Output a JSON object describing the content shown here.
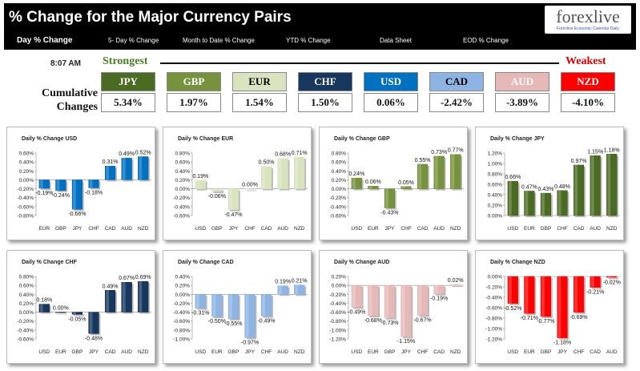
{
  "header": {
    "title": "% Change for the Major Currency Pairs",
    "logo_text": "forexlive",
    "logo_sub": "Forexlive Economic Calendar Daily"
  },
  "nav": {
    "tabs": [
      "Day % Change",
      "5- Day % Change",
      "Month to Date % Change",
      "YTD % Change",
      "Data Sheet",
      "EOD % Change"
    ]
  },
  "summary": {
    "time": "8:07 AM",
    "strongest_label": "Strongest",
    "weakest_label": "Weakest",
    "cumulative_label_line1": "Cumulative",
    "cumulative_label_line2": "Changes",
    "currencies": [
      {
        "name": "JPY",
        "value": "5.34%",
        "color": "#4b6b23",
        "text_color": "#ffffff"
      },
      {
        "name": "GBP",
        "value": "1.97%",
        "color": "#76923c",
        "text_color": "#ffffff"
      },
      {
        "name": "EUR",
        "value": "1.54%",
        "color": "#d7e4bd",
        "text_color": "#000000"
      },
      {
        "name": "CHF",
        "value": "1.50%",
        "color": "#17375e",
        "text_color": "#ffffff"
      },
      {
        "name": "USD",
        "value": "0.06%",
        "color": "#0070c0",
        "text_color": "#ffffff"
      },
      {
        "name": "CAD",
        "value": "-2.42%",
        "color": "#8db4e2",
        "text_color": "#000000"
      },
      {
        "name": "AUD",
        "value": "-3.89%",
        "color": "#e6b9b8",
        "text_color": "#ffffff"
      },
      {
        "name": "NZD",
        "value": "-4.10%",
        "color": "#ff0000",
        "text_color": "#ffffff"
      }
    ]
  },
  "chart_data": [
    {
      "type": "bar",
      "title": "Daily % Change USD",
      "categories": [
        "EUR",
        "GBP",
        "JPY",
        "CHF",
        "CAD",
        "AUD",
        "NZD"
      ],
      "values": [
        -0.19,
        -0.24,
        -0.66,
        -0.18,
        0.31,
        0.49,
        0.52
      ],
      "labels": [
        "-0.19%",
        "-0.24%",
        "-0.66%",
        "-0.18%",
        "0.31%",
        "0.49%",
        "0.52%"
      ],
      "yticks": [
        "0.60%",
        "0.40%",
        "0.20%",
        "0.00%",
        "-0.20%",
        "-0.40%",
        "-0.60%",
        "-0.80%"
      ],
      "ylim": [
        -0.8,
        0.6
      ],
      "color": "#0070c0"
    },
    {
      "type": "bar",
      "title": "Daily % Change EUR",
      "categories": [
        "USD",
        "GBP",
        "JPY",
        "CHF",
        "CAD",
        "AUD",
        "NZD"
      ],
      "values": [
        0.19,
        -0.06,
        -0.47,
        0.0,
        0.5,
        0.68,
        0.71
      ],
      "labels": [
        "0.19%",
        "-0.06%",
        "-0.47%",
        "0.00%",
        "0.50%",
        "0.68%",
        "0.71%"
      ],
      "yticks": [
        "0.80%",
        "0.60%",
        "0.40%",
        "0.20%",
        "0.00%",
        "-0.20%",
        "-0.40%",
        "-0.60%"
      ],
      "ylim": [
        -0.6,
        0.8
      ],
      "color": "#d7e4bd"
    },
    {
      "type": "bar",
      "title": "Daily % Change GBP",
      "categories": [
        "USD",
        "EUR",
        "JPY",
        "CHF",
        "CAD",
        "AUD",
        "NZD"
      ],
      "values": [
        0.24,
        0.06,
        -0.43,
        0.05,
        0.55,
        0.73,
        0.77
      ],
      "labels": [
        "0.24%",
        "0.06%",
        "-0.43%",
        "0.05%",
        "0.55%",
        "0.73%",
        "0.77%"
      ],
      "yticks": [
        "0.80%",
        "0.60%",
        "0.40%",
        "0.20%",
        "0.00%",
        "-0.20%",
        "-0.40%",
        "-0.60%"
      ],
      "ylim": [
        -0.6,
        0.8
      ],
      "color": "#76923c"
    },
    {
      "type": "bar",
      "title": "Daily % Change JPY",
      "categories": [
        "USD",
        "EUR",
        "GBP",
        "CHF",
        "CAD",
        "AUD",
        "NZD"
      ],
      "values": [
        0.66,
        0.47,
        0.43,
        0.48,
        0.97,
        1.15,
        1.18
      ],
      "labels": [
        "0.66%",
        "0.47%",
        "0.43%",
        "0.48%",
        "0.97%",
        "1.15%",
        "1.18%"
      ],
      "yticks": [
        "1.20%",
        "1.00%",
        "0.80%",
        "0.60%",
        "0.40%",
        "0.20%",
        "0.00%"
      ],
      "ylim": [
        0.0,
        1.2
      ],
      "color": "#4b6b23"
    },
    {
      "type": "bar",
      "title": "Daily % Change CHF",
      "categories": [
        "USD",
        "EUR",
        "GBP",
        "JPY",
        "CAD",
        "AUD",
        "NZD"
      ],
      "values": [
        0.18,
        0.0,
        -0.05,
        -0.48,
        0.49,
        0.67,
        0.69
      ],
      "labels": [
        "0.18%",
        "0.00%",
        "-0.05%",
        "-0.48%",
        "0.49%",
        "0.67%",
        "0.69%"
      ],
      "yticks": [
        "0.80%",
        "0.60%",
        "0.40%",
        "0.20%",
        "0.00%",
        "-0.20%",
        "-0.40%",
        "-0.60%"
      ],
      "ylim": [
        -0.6,
        0.8
      ],
      "color": "#17375e"
    },
    {
      "type": "bar",
      "title": "Daily % Change CAD",
      "categories": [
        "USD",
        "EUR",
        "GBP",
        "JPY",
        "CHF",
        "AUD",
        "NZD"
      ],
      "values": [
        -0.31,
        -0.5,
        -0.55,
        -0.97,
        -0.49,
        0.19,
        0.21
      ],
      "labels": [
        "-0.31%",
        "-0.50%",
        "-0.55%",
        "-0.97%",
        "-0.49%",
        "0.19%",
        "0.21%"
      ],
      "yticks": [
        "0.40%",
        "0.20%",
        "0.00%",
        "-0.20%",
        "-0.40%",
        "-0.60%",
        "-0.80%",
        "-1.00%"
      ],
      "ylim": [
        -1.0,
        0.4
      ],
      "color": "#8db4e2"
    },
    {
      "type": "bar",
      "title": "Daily % Change AUD",
      "categories": [
        "USD",
        "EUR",
        "GBP",
        "JPY",
        "CHF",
        "CAD",
        "NZD"
      ],
      "values": [
        -0.49,
        -0.68,
        -0.73,
        -1.15,
        -0.67,
        -0.19,
        0.02
      ],
      "labels": [
        "-0.49%",
        "-0.68%",
        "-0.73%",
        "-1.15%",
        "-0.67%",
        "-0.19%",
        "0.02%"
      ],
      "yticks": [
        "0.20%",
        "0.00%",
        "-0.20%",
        "-0.40%",
        "-0.60%",
        "-0.80%",
        "-1.00%",
        "-1.20%"
      ],
      "ylim": [
        -1.2,
        0.2
      ],
      "color": "#e6b9b8"
    },
    {
      "type": "bar",
      "title": "Daily % Change NZD",
      "categories": [
        "USD",
        "EUR",
        "GBP",
        "JPY",
        "CHF",
        "CAD",
        "AUD"
      ],
      "values": [
        -0.52,
        -0.71,
        -0.77,
        -1.18,
        -0.69,
        -0.21,
        -0.02
      ],
      "labels": [
        "-0.52%",
        "-0.71%",
        "-0.77%",
        "-1.18%",
        "-0.69%",
        "-0.21%",
        "-0.02%"
      ],
      "yticks": [
        "0.00%",
        "-0.20%",
        "-0.40%",
        "-0.60%",
        "-0.80%",
        "-1.00%",
        "-1.20%"
      ],
      "ylim": [
        -1.2,
        0.0
      ],
      "color": "#ff0000"
    }
  ]
}
